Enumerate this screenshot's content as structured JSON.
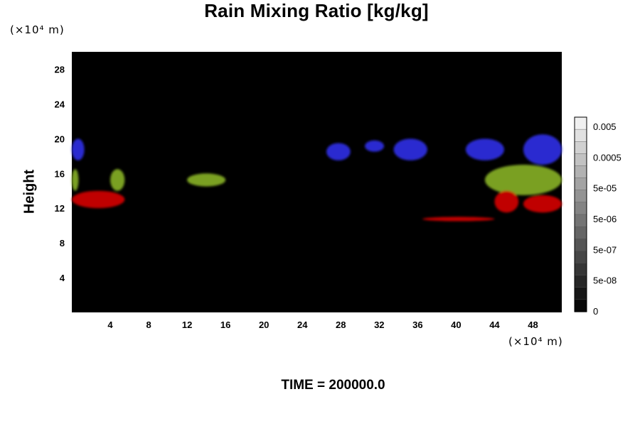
{
  "chart_data": {
    "type": "heatmap",
    "title": "Rain Mixing Ratio [kg/kg]",
    "ylabel": "Height",
    "xlabel": "",
    "x_unit": "(×10⁴ m)",
    "y_unit": "(×10⁴ m)",
    "xlim": [
      0,
      51
    ],
    "ylim": [
      0,
      30
    ],
    "xticks": [
      4,
      8,
      12,
      16,
      20,
      24,
      28,
      32,
      36,
      40,
      44,
      48
    ],
    "yticks": [
      4,
      8,
      12,
      16,
      20,
      24,
      28
    ],
    "grid": false,
    "background": "#000000",
    "colorbar": {
      "labels": [
        "0.005",
        "0.0005",
        "5e-05",
        "5e-06",
        "5e-07",
        "5e-08",
        "0"
      ],
      "label_levels": [
        0.005,
        0.0005,
        5e-05,
        5e-06,
        5e-07,
        5e-08,
        0
      ],
      "n_levels": 16
    },
    "features": [
      {
        "color": "#2a2ad0",
        "x": [
          0.0,
          1.3
        ],
        "y": [
          17.5,
          20.0
        ]
      },
      {
        "color": "#2a2ad0",
        "x": [
          26.5,
          29.0
        ],
        "y": [
          17.5,
          19.5
        ]
      },
      {
        "color": "#2a2ad0",
        "x": [
          30.5,
          32.5
        ],
        "y": [
          18.5,
          19.8
        ]
      },
      {
        "color": "#2a2ad0",
        "x": [
          33.5,
          37.0
        ],
        "y": [
          17.5,
          20.0
        ]
      },
      {
        "color": "#2a2ad0",
        "x": [
          41.0,
          45.0
        ],
        "y": [
          17.5,
          20.0
        ]
      },
      {
        "color": "#2a2ad0",
        "x": [
          47.0,
          51.0
        ],
        "y": [
          17.0,
          20.5
        ]
      },
      {
        "color": "#7aa020",
        "x": [
          0.0,
          0.7
        ],
        "y": [
          14.0,
          16.5
        ]
      },
      {
        "color": "#7aa020",
        "x": [
          4.0,
          5.5
        ],
        "y": [
          14.0,
          16.5
        ]
      },
      {
        "color": "#7aa020",
        "x": [
          12.0,
          16.0
        ],
        "y": [
          14.5,
          16.0
        ]
      },
      {
        "color": "#7aa020",
        "x": [
          43.0,
          51.0
        ],
        "y": [
          13.5,
          17.0
        ]
      },
      {
        "color": "#c00000",
        "x": [
          0.0,
          5.5
        ],
        "y": [
          12.0,
          14.0
        ]
      },
      {
        "color": "#c00000",
        "x": [
          36.5,
          44.0
        ],
        "y": [
          10.5,
          11.0
        ]
      },
      {
        "color": "#c00000",
        "x": [
          44.0,
          46.5
        ],
        "y": [
          11.5,
          14.0
        ]
      },
      {
        "color": "#c00000",
        "x": [
          47.0,
          51.0
        ],
        "y": [
          11.5,
          13.5
        ]
      }
    ]
  },
  "footer": "TIME = 200000.0"
}
